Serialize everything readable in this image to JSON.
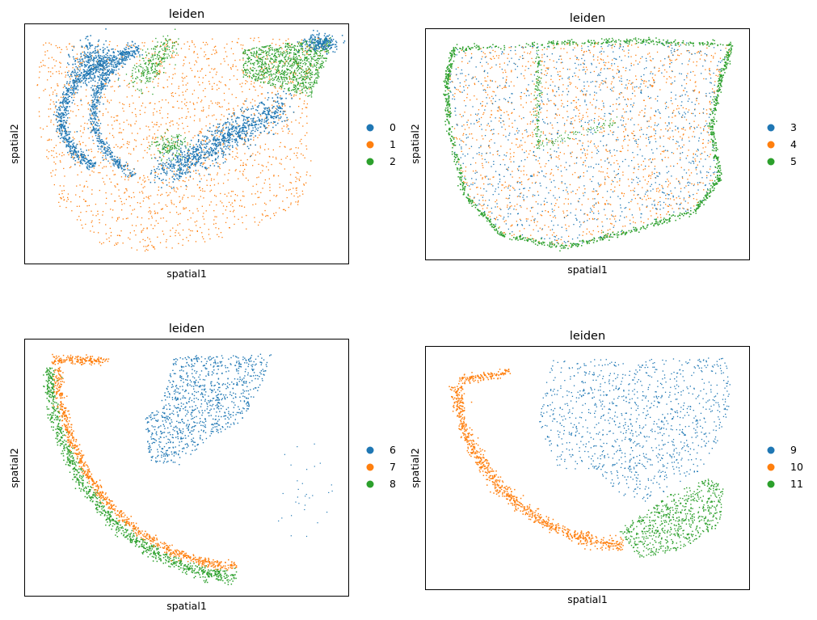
{
  "colors": {
    "series_a": "#1f77b4",
    "series_b": "#ff7f0e",
    "series_c": "#2ca02c"
  },
  "chart_data": [
    {
      "type": "scatter",
      "title": "leiden",
      "xlabel": "spatial1",
      "ylabel": "spatial2",
      "grid": false,
      "ticks": false,
      "legend_position": "right",
      "legend": [
        "0",
        "1",
        "2"
      ],
      "series": [
        {
          "name": "0",
          "color": "#1f77b4",
          "value": "0"
        },
        {
          "name": "1",
          "color": "#ff7f0e",
          "value": "1"
        },
        {
          "name": "2",
          "color": "#2ca02c",
          "value": "2"
        }
      ]
    },
    {
      "type": "scatter",
      "title": "leiden",
      "xlabel": "spatial1",
      "ylabel": "spatial2",
      "grid": false,
      "ticks": false,
      "legend_position": "right",
      "legend": [
        "3",
        "4",
        "5"
      ],
      "series": [
        {
          "name": "3",
          "color": "#1f77b4",
          "value": "3"
        },
        {
          "name": "4",
          "color": "#ff7f0e",
          "value": "4"
        },
        {
          "name": "5",
          "color": "#2ca02c",
          "value": "5"
        }
      ]
    },
    {
      "type": "scatter",
      "title": "leiden",
      "xlabel": "spatial1",
      "ylabel": "spatial2",
      "grid": false,
      "ticks": false,
      "legend_position": "right",
      "legend": [
        "6",
        "7",
        "8"
      ],
      "series": [
        {
          "name": "6",
          "color": "#1f77b4",
          "value": "6"
        },
        {
          "name": "7",
          "color": "#ff7f0e",
          "value": "7"
        },
        {
          "name": "8",
          "color": "#2ca02c",
          "value": "8"
        }
      ]
    },
    {
      "type": "scatter",
      "title": "leiden",
      "xlabel": "spatial1",
      "ylabel": "spatial2",
      "grid": false,
      "ticks": false,
      "legend_position": "right",
      "legend": [
        "9",
        "10",
        "11"
      ],
      "series": [
        {
          "name": "9",
          "color": "#1f77b4",
          "value": "9"
        },
        {
          "name": "10",
          "color": "#ff7f0e",
          "value": "10"
        },
        {
          "name": "11",
          "color": "#2ca02c",
          "value": "11"
        }
      ]
    }
  ]
}
